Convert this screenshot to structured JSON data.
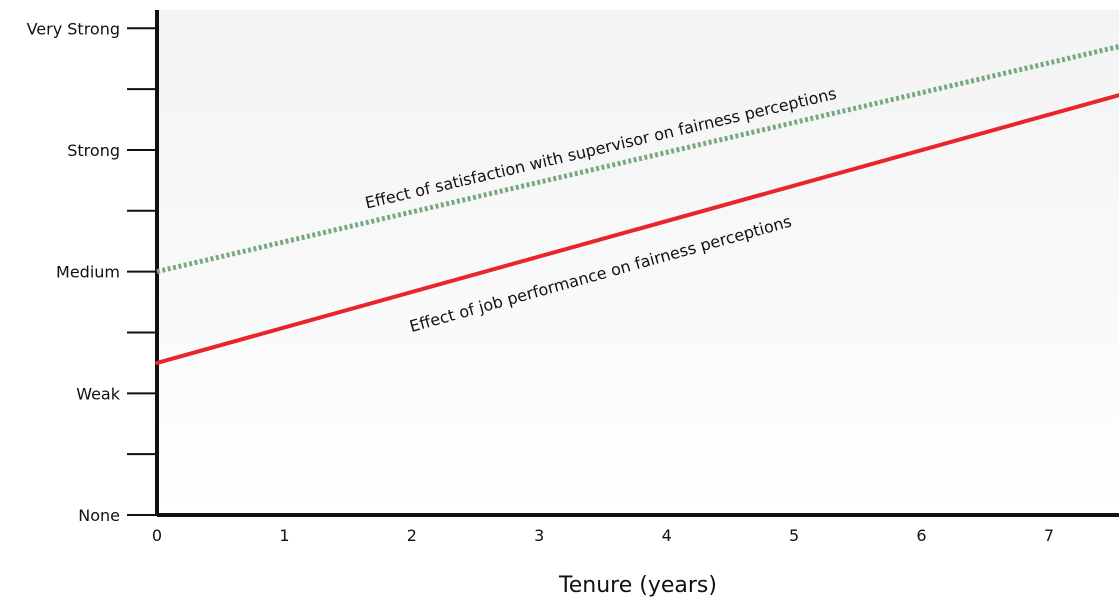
{
  "chart_data": {
    "type": "line",
    "xlabel": "Tenure (years)",
    "ylabel": "",
    "x_ticks": [
      "0",
      "1",
      "2",
      "3",
      "4",
      "5",
      "6",
      "7"
    ],
    "y_ticks": [
      "None",
      "Weak",
      "Medium",
      "Strong",
      "Very Strong"
    ],
    "xlim": [
      0,
      7.55
    ],
    "ylim": [
      0,
      8.3
    ],
    "grid": false,
    "series": [
      {
        "name": "Effect of satisfaction with supervisor on fairness perceptions",
        "x": [
          0,
          7.55
        ],
        "y": [
          4.0,
          7.7
        ],
        "style": "dotted",
        "color": "#77a982"
      },
      {
        "name": "Effect of job performance on fairness perceptions",
        "x": [
          0,
          7.55
        ],
        "y": [
          2.5,
          6.9
        ],
        "style": "solid",
        "color": "#e8252b"
      }
    ]
  }
}
